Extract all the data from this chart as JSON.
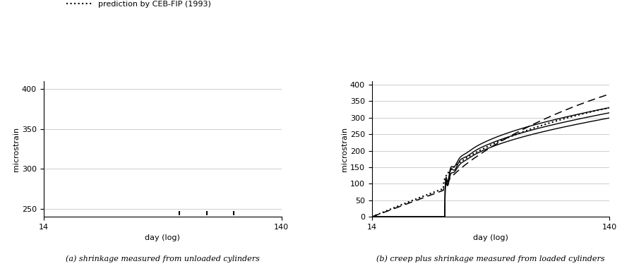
{
  "title_a": "(a) shrinkage measured from unloaded cylinders",
  "title_b": "(b) creep plus shrinkage measured from loaded cylinders",
  "ylabel": "microstrain",
  "xlabel": "day (log)",
  "xlim": [
    14,
    140
  ],
  "ylim_a": [
    240,
    410
  ],
  "ylim_b": [
    0,
    410
  ],
  "yticks_a": [
    250,
    300,
    350,
    400
  ],
  "yticks_b": [
    0,
    50,
    100,
    150,
    200,
    250,
    300,
    350,
    400
  ],
  "background_color": "#ffffff",
  "line_color": "#000000"
}
